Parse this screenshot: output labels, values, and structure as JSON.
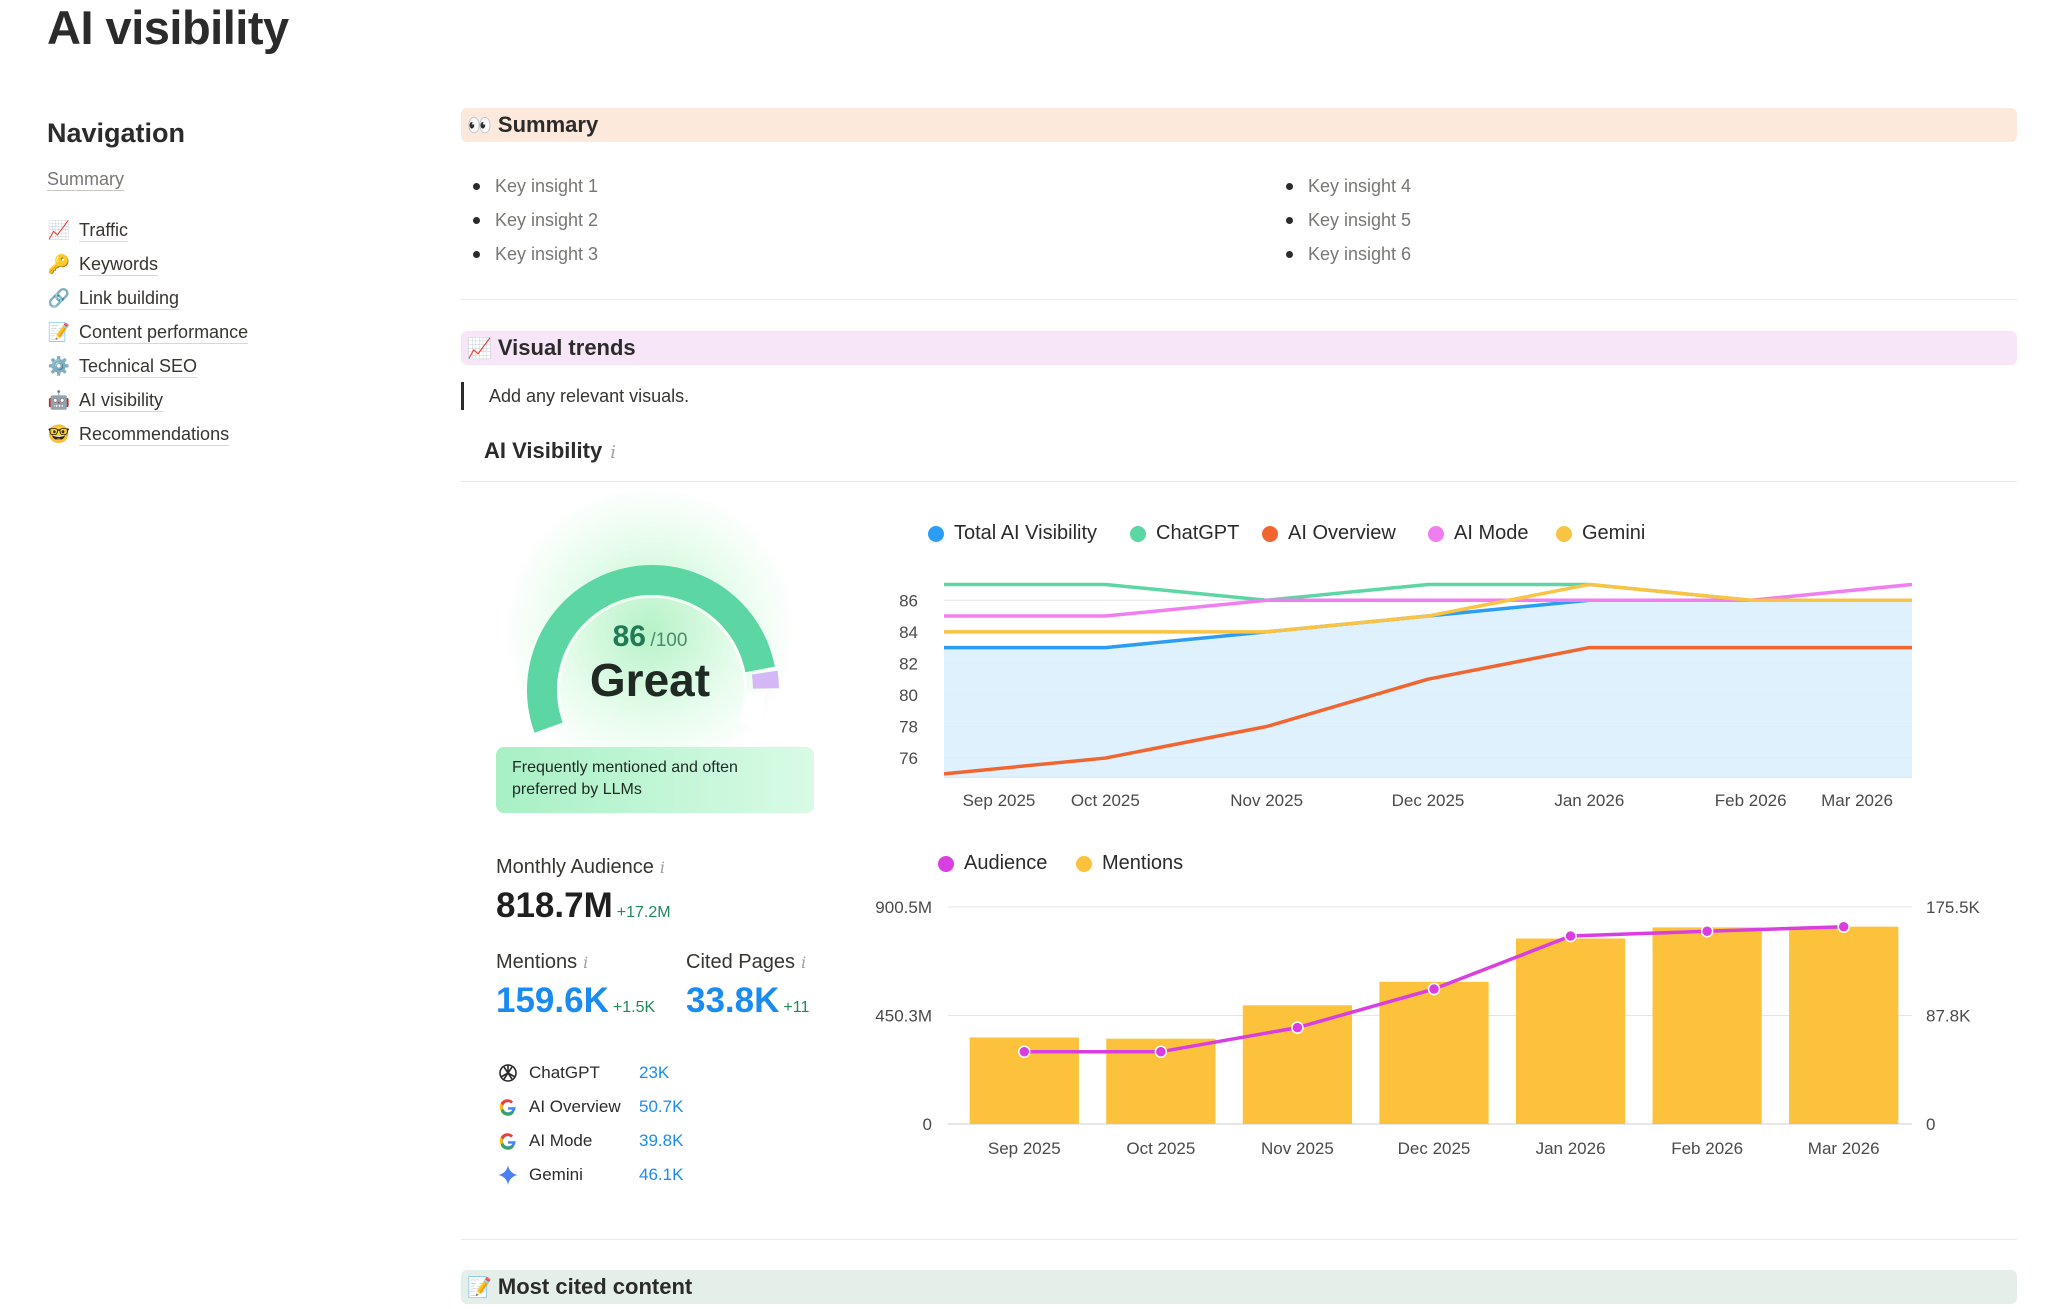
{
  "page": {
    "title": "AI visibility"
  },
  "nav": {
    "heading": "Navigation",
    "summary": "Summary",
    "items": [
      {
        "icon": "chart-increasing-icon",
        "glyph": "📈",
        "label": "Traffic"
      },
      {
        "icon": "key-icon",
        "glyph": "🔑",
        "label": "Keywords"
      },
      {
        "icon": "link-icon",
        "glyph": "🔗",
        "label": "Link building"
      },
      {
        "icon": "memo-icon",
        "glyph": "📝",
        "label": "Content performance"
      },
      {
        "icon": "gear-icon",
        "glyph": "⚙️",
        "label": "Technical SEO"
      },
      {
        "icon": "robot-icon",
        "glyph": "🤖",
        "label": "AI visibility"
      },
      {
        "icon": "nerd-face-icon",
        "glyph": "🤓",
        "label": "Recommendations"
      }
    ]
  },
  "sections": {
    "summary": {
      "icon": "eyes-icon",
      "glyph": "👀",
      "title": "Summary"
    },
    "trends": {
      "icon": "chart-increasing-icon",
      "glyph": "📈",
      "title": "Visual trends"
    },
    "cited": {
      "icon": "memo-icon",
      "glyph": "📝",
      "title": "Most cited content"
    }
  },
  "insights": {
    "left": [
      "Key insight 1",
      "Key insight 2",
      "Key insight 3"
    ],
    "right": [
      "Key insight 4",
      "Key insight 5",
      "Key insight 6"
    ]
  },
  "trends_note": "Add any relevant visuals.",
  "widget": {
    "title": "AI Visibility",
    "info": "i",
    "score": "86",
    "score_max": "/100",
    "score_fraction": 0.86,
    "grade": "Great",
    "caption": "Frequently mentioned and often preferred by LLMs",
    "audience": {
      "label": "Monthly Audience",
      "value": "818.7M",
      "delta": "+17.2M"
    },
    "mentions": {
      "label": "Mentions",
      "value": "159.6K",
      "delta": "+1.5K"
    },
    "cited_pages": {
      "label": "Cited Pages",
      "value": "33.8K",
      "delta": "+11"
    },
    "engines": [
      {
        "icon": "chatgpt-icon",
        "name": "ChatGPT",
        "value": "23K"
      },
      {
        "icon": "google-icon",
        "name": "AI Overview",
        "value": "50.7K"
      },
      {
        "icon": "google-icon",
        "name": "AI Mode",
        "value": "39.8K"
      },
      {
        "icon": "gemini-icon",
        "name": "Gemini",
        "value": "46.1K"
      }
    ]
  },
  "colors": {
    "total": "#2b9df4",
    "chatgpt": "#5cd6a3",
    "ai_overview": "#f06530",
    "ai_mode": "#f07ef0",
    "gemini": "#f9c444",
    "audience": "#d93fe0",
    "mentions": "#fdc23c",
    "area": "#d9eefc"
  },
  "chart_data": [
    {
      "type": "line",
      "categories": [
        "Sep 2025",
        "Oct 2025",
        "Nov 2025",
        "Dec 2025",
        "Jan 2026",
        "Feb 2026",
        "Mar 2026"
      ],
      "y_ticks": [
        "76",
        "78",
        "80",
        "82",
        "84",
        "86"
      ],
      "ylim": [
        74.8,
        87.6
      ],
      "legend_position": "top",
      "series": [
        {
          "name": "Total AI Visibility",
          "key": "total",
          "values": [
            83,
            83,
            84,
            85,
            86,
            86,
            86
          ],
          "area": true
        },
        {
          "name": "ChatGPT",
          "key": "chatgpt",
          "values": [
            87,
            87,
            86,
            87,
            87,
            86,
            86
          ]
        },
        {
          "name": "AI Overview",
          "key": "ai_overview",
          "values": [
            75,
            76,
            78,
            81,
            83,
            83,
            83
          ]
        },
        {
          "name": "AI Mode",
          "key": "ai_mode",
          "values": [
            85,
            85,
            86,
            86,
            86,
            86,
            87
          ]
        },
        {
          "name": "Gemini",
          "key": "gemini",
          "values": [
            84,
            84,
            84,
            85,
            87,
            86,
            86
          ]
        }
      ]
    },
    {
      "type": "bar",
      "categories": [
        "Sep 2025",
        "Oct 2025",
        "Nov 2025",
        "Dec 2025",
        "Jan 2026",
        "Feb 2026",
        "Mar 2026"
      ],
      "legend_position": "top",
      "left_axis": {
        "ticks": [
          "0",
          "450.3M",
          "900.5M"
        ],
        "max": 900.5
      },
      "right_axis": {
        "ticks": [
          "0",
          "87.8K",
          "175.5K"
        ],
        "max": 175.5
      },
      "series": [
        {
          "name": "Audience",
          "key": "audience",
          "type": "line",
          "axis": "left",
          "values": [
            300,
            300,
            400,
            560,
            780,
            800,
            818.7
          ]
        },
        {
          "name": "Mentions",
          "key": "mentions",
          "type": "bar",
          "axis": "right",
          "values": [
            70,
            69,
            96,
            115,
            150,
            159,
            159.6
          ]
        }
      ]
    }
  ]
}
